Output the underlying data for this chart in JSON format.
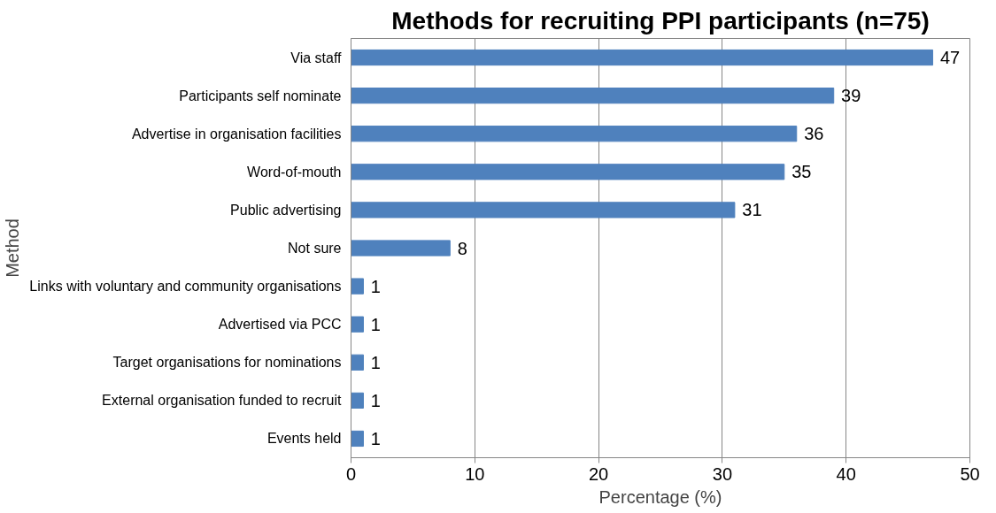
{
  "chart_data": {
    "type": "bar",
    "orientation": "horizontal",
    "title": "Methods for recruiting PPI participants (n=75)",
    "xlabel": "Percentage (%)",
    "ylabel": "Method",
    "categories": [
      "Via staff",
      "Participants self nominate",
      "Advertise in organisation facilities",
      "Word-of-mouth",
      "Public advertising",
      "Not sure",
      "Links with voluntary and community organisations",
      "Advertised via PCC",
      "Target organisations for nominations",
      "External organisation funded to recruit",
      "Events held"
    ],
    "values": [
      47,
      39,
      36,
      35,
      31,
      8,
      1,
      1,
      1,
      1,
      1
    ],
    "color": "#4f81bd",
    "xlim": [
      0,
      50
    ],
    "xticks": [
      0,
      10,
      20,
      30,
      40,
      50
    ],
    "grid": "x",
    "data_labels": true
  }
}
